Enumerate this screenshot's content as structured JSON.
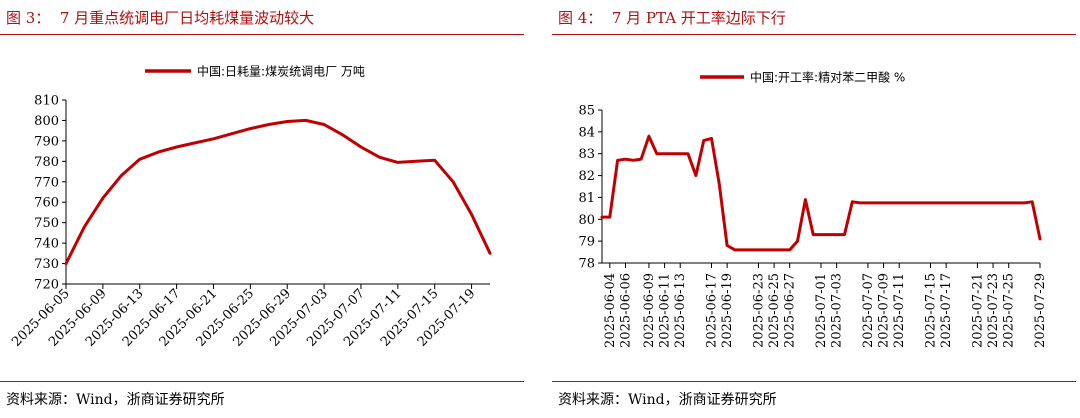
{
  "colors": {
    "accent": "#b01010",
    "line": "#c00000"
  },
  "left": {
    "title": "图 3：  7 月重点统调电厂日均耗煤量波动较大",
    "source": "资料来源：Wind，浙商证券研究所",
    "chart_data": {
      "type": "line",
      "series": [
        {
          "name": "中国:日耗量:煤炭统调电厂 万吨",
          "x": [
            "2025-06-05",
            "2025-06-07",
            "2025-06-09",
            "2025-06-11",
            "2025-06-13",
            "2025-06-15",
            "2025-06-17",
            "2025-06-19",
            "2025-06-21",
            "2025-06-23",
            "2025-06-25",
            "2025-06-27",
            "2025-06-29",
            "2025-07-01",
            "2025-07-03",
            "2025-07-05",
            "2025-07-07",
            "2025-07-09",
            "2025-07-11",
            "2025-07-13",
            "2025-07-15",
            "2025-07-17",
            "2025-07-19",
            "2025-07-21"
          ],
          "values": [
            730,
            748,
            762,
            773,
            781,
            784.5,
            787,
            789,
            791,
            793.5,
            796,
            798,
            799.5,
            800,
            798,
            793,
            787,
            782,
            779.5,
            780,
            780.5,
            770,
            754,
            735
          ]
        }
      ],
      "xticks": [
        "2025-06-05",
        "2025-06-09",
        "2025-06-13",
        "2025-06-17",
        "2025-06-21",
        "2025-06-25",
        "2025-06-29",
        "2025-07-03",
        "2025-07-07",
        "2025-07-11",
        "2025-07-15",
        "2025-07-19"
      ],
      "ylim": [
        720,
        810
      ],
      "yticks": [
        720,
        730,
        740,
        750,
        760,
        770,
        780,
        790,
        800,
        810
      ],
      "legend": "top",
      "grid": false
    }
  },
  "right": {
    "title": "图 4：  7 月 PTA 开工率边际下行",
    "source": "资料来源：Wind，浙商证券研究所",
    "chart_data": {
      "type": "line",
      "series": [
        {
          "name": "中国:开工率:精对苯二甲酸 %",
          "x": [
            "2025-06-03",
            "2025-06-04",
            "2025-06-05",
            "2025-06-06",
            "2025-06-07",
            "2025-06-08",
            "2025-06-09",
            "2025-06-10",
            "2025-06-11",
            "2025-06-12",
            "2025-06-13",
            "2025-06-14",
            "2025-06-15",
            "2025-06-16",
            "2025-06-17",
            "2025-06-18",
            "2025-06-19",
            "2025-06-20",
            "2025-06-21",
            "2025-06-22",
            "2025-06-23",
            "2025-06-24",
            "2025-06-25",
            "2025-06-26",
            "2025-06-27",
            "2025-06-28",
            "2025-06-29",
            "2025-06-30",
            "2025-07-01",
            "2025-07-02",
            "2025-07-03",
            "2025-07-04",
            "2025-07-05",
            "2025-07-06",
            "2025-07-07",
            "2025-07-08",
            "2025-07-09",
            "2025-07-10",
            "2025-07-11",
            "2025-07-12",
            "2025-07-13",
            "2025-07-14",
            "2025-07-15",
            "2025-07-16",
            "2025-07-17",
            "2025-07-18",
            "2025-07-19",
            "2025-07-20",
            "2025-07-21",
            "2025-07-22",
            "2025-07-23",
            "2025-07-24",
            "2025-07-25",
            "2025-07-26",
            "2025-07-27",
            "2025-07-28",
            "2025-07-29"
          ],
          "values": [
            80.1,
            80.1,
            82.7,
            82.75,
            82.7,
            82.75,
            83.8,
            83.0,
            83.0,
            83.0,
            83.0,
            83.0,
            82.0,
            83.6,
            83.7,
            81.6,
            78.8,
            78.6,
            78.6,
            78.6,
            78.6,
            78.6,
            78.6,
            78.6,
            78.6,
            79.0,
            80.9,
            79.3,
            79.3,
            79.3,
            79.3,
            79.3,
            80.8,
            80.75,
            80.75,
            80.75,
            80.75,
            80.75,
            80.75,
            80.75,
            80.75,
            80.75,
            80.75,
            80.75,
            80.75,
            80.75,
            80.75,
            80.75,
            80.75,
            80.75,
            80.75,
            80.75,
            80.75,
            80.75,
            80.75,
            80.8,
            79.1
          ]
        }
      ],
      "xticks": [
        "2025-06-04",
        "2025-06-06",
        "2025-06-09",
        "2025-06-11",
        "2025-06-13",
        "2025-06-17",
        "2025-06-19",
        "2025-06-23",
        "2025-06-25",
        "2025-06-27",
        "2025-07-01",
        "2025-07-03",
        "2025-07-07",
        "2025-07-09",
        "2025-07-11",
        "2025-07-15",
        "2025-07-17",
        "2025-07-21",
        "2025-07-23",
        "2025-07-25",
        "2025-07-29"
      ],
      "ylim": [
        78,
        85
      ],
      "yticks": [
        78,
        79,
        80,
        81,
        82,
        83,
        84,
        85
      ],
      "legend": "top",
      "grid": false
    }
  }
}
